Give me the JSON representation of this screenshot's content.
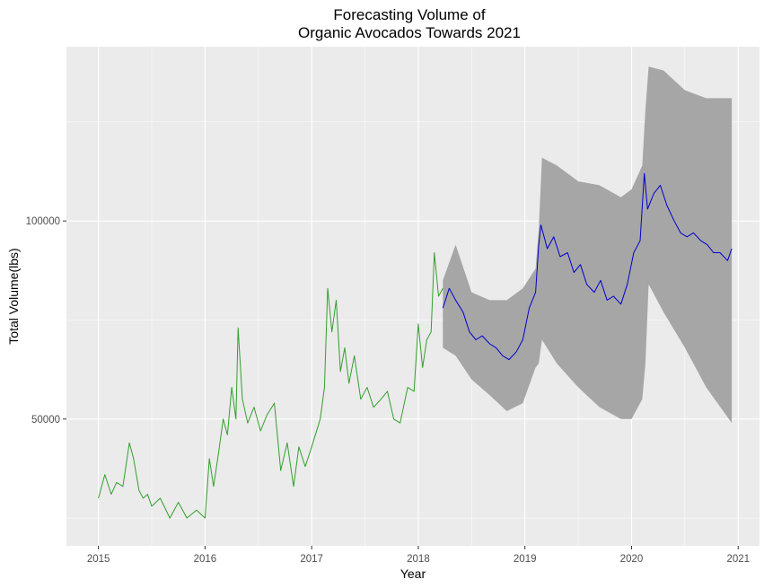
{
  "chart_data": {
    "type": "line",
    "title_lines": [
      "Forecasting Volume of",
      "Organic Avocados Towards 2021"
    ],
    "xlabel": "Year",
    "ylabel": "Total Volume(lbs)",
    "xlim": [
      2014.7,
      2021.2
    ],
    "ylim": [
      18000,
      144000
    ],
    "x_ticks": [
      2015,
      2016,
      2017,
      2018,
      2019,
      2020,
      2021
    ],
    "x_tick_labels": [
      "2015",
      "2016",
      "2017",
      "2018",
      "2019",
      "2020",
      "2021"
    ],
    "y_ticks": [
      50000,
      100000
    ],
    "y_tick_labels": [
      "50000",
      "100000"
    ],
    "grid": true,
    "colors": {
      "panel_background": "#ebebeb",
      "grid": "#ffffff",
      "historical": "#33a02c",
      "forecast": "#0000cd",
      "interval": "#a6a6a6"
    },
    "historical": {
      "x": [
        2015.0,
        2015.06,
        2015.12,
        2015.17,
        2015.23,
        2015.29,
        2015.33,
        2015.38,
        2015.42,
        2015.46,
        2015.5,
        2015.58,
        2015.67,
        2015.75,
        2015.83,
        2015.92,
        2016.0,
        2016.04,
        2016.08,
        2016.13,
        2016.17,
        2016.21,
        2016.25,
        2016.29,
        2016.31,
        2016.35,
        2016.4,
        2016.46,
        2016.52,
        2016.58,
        2016.65,
        2016.71,
        2016.77,
        2016.83,
        2016.88,
        2016.94,
        2017.0,
        2017.08,
        2017.12,
        2017.15,
        2017.19,
        2017.23,
        2017.27,
        2017.31,
        2017.35,
        2017.4,
        2017.46,
        2017.52,
        2017.58,
        2017.65,
        2017.71,
        2017.77,
        2017.83,
        2017.9,
        2017.96,
        2018.0,
        2018.04,
        2018.08,
        2018.12,
        2018.15,
        2018.19,
        2018.23
      ],
      "y": [
        30000,
        36000,
        31000,
        34000,
        33000,
        44000,
        40000,
        32000,
        30000,
        31000,
        28000,
        30000,
        25000,
        29000,
        25000,
        27000,
        25000,
        40000,
        33000,
        42000,
        50000,
        46000,
        58000,
        50000,
        73000,
        55000,
        49000,
        53000,
        47000,
        51000,
        54000,
        37000,
        44000,
        33000,
        43000,
        38000,
        43000,
        50000,
        58000,
        83000,
        72000,
        80000,
        62000,
        68000,
        59000,
        66000,
        55000,
        58000,
        53000,
        55000,
        57000,
        50000,
        49000,
        58000,
        57000,
        74000,
        63000,
        70000,
        72000,
        92000,
        81000,
        83000
      ]
    },
    "forecast": {
      "x": [
        2018.23,
        2018.29,
        2018.35,
        2018.42,
        2018.48,
        2018.54,
        2018.6,
        2018.67,
        2018.73,
        2018.79,
        2018.85,
        2018.92,
        2018.98,
        2019.04,
        2019.1,
        2019.13,
        2019.15,
        2019.21,
        2019.27,
        2019.33,
        2019.4,
        2019.46,
        2019.52,
        2019.58,
        2019.65,
        2019.71,
        2019.77,
        2019.83,
        2019.9,
        2019.96,
        2020.02,
        2020.08,
        2020.12,
        2020.15,
        2020.21,
        2020.27,
        2020.33,
        2020.4,
        2020.46,
        2020.52,
        2020.58,
        2020.65,
        2020.71,
        2020.77,
        2020.83,
        2020.9,
        2020.94
      ],
      "y": [
        78000,
        83000,
        80000,
        77000,
        72000,
        70000,
        71000,
        69000,
        68000,
        66000,
        65000,
        67000,
        70000,
        78000,
        82000,
        94000,
        99000,
        93000,
        96000,
        91000,
        92000,
        87000,
        89000,
        84000,
        82000,
        85000,
        80000,
        81000,
        79000,
        84000,
        92000,
        95000,
        112000,
        103000,
        107000,
        109000,
        104000,
        100000,
        97000,
        96000,
        97000,
        95000,
        94000,
        92000,
        92000,
        90000,
        93000
      ]
    },
    "interval": {
      "x": [
        2018.23,
        2018.35,
        2018.5,
        2018.67,
        2018.83,
        2018.98,
        2019.1,
        2019.13,
        2019.16,
        2019.3,
        2019.5,
        2019.7,
        2019.9,
        2020.0,
        2020.1,
        2020.13,
        2020.16,
        2020.3,
        2020.5,
        2020.7,
        2020.94
      ],
      "lower": [
        68000,
        66000,
        60000,
        56000,
        52000,
        54000,
        63000,
        64000,
        70000,
        64000,
        58000,
        53000,
        50000,
        50000,
        55000,
        64000,
        84000,
        77000,
        68000,
        58000,
        49000
      ],
      "upper": [
        85000,
        94000,
        82000,
        80000,
        80000,
        83000,
        88000,
        98000,
        116000,
        114000,
        110000,
        109000,
        106000,
        108000,
        114000,
        128000,
        139000,
        138000,
        133000,
        131000,
        131000
      ]
    }
  }
}
